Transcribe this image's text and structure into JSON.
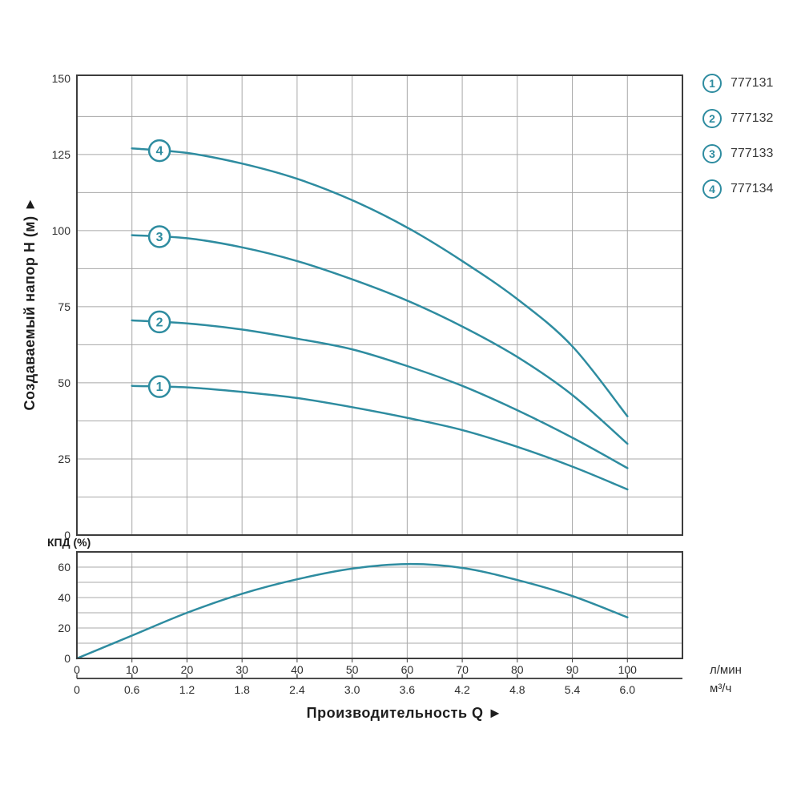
{
  "titles": {
    "y_main": "Создаваемый напор H (м)  ►",
    "x_bottom": "Производительность Q  ►",
    "eff": "КПД (%)",
    "unit_lmin": "л/мин",
    "unit_m3h": "м³/ч"
  },
  "colors": {
    "curve": "#2e8ca0",
    "grid": "#a8a8a8",
    "border": "#3d3d3d",
    "scalebar": "#4d4d4d",
    "tick_text": "#2e2e2e"
  },
  "legend": {
    "items": [
      {
        "number": "1",
        "code": "777131",
        "icon": "circled-1-icon"
      },
      {
        "number": "2",
        "code": "777132",
        "icon": "circled-2-icon"
      },
      {
        "number": "3",
        "code": "777133",
        "icon": "circled-3-icon"
      },
      {
        "number": "4",
        "code": "777134",
        "icon": "circled-4-icon"
      }
    ]
  },
  "chart_data": [
    {
      "type": "line",
      "title": "",
      "xlabel": "Производительность Q",
      "ylabel": "Создаваемый напор H (м)",
      "xlim": [
        0,
        110
      ],
      "ylim": [
        0,
        151
      ],
      "grid": true,
      "grid_x_step": 10,
      "grid_y_step": 12.5,
      "y_ticks": [
        0,
        25,
        50,
        75,
        100,
        125,
        150
      ],
      "x_ticks_lmin": [
        0,
        10,
        20,
        30,
        40,
        50,
        60,
        70,
        80,
        90,
        100
      ],
      "x_ticks_m3h": [
        "0",
        "0.6",
        "1.2",
        "1.8",
        "2.4",
        "3.0",
        "3.6",
        "4.2",
        "4.8",
        "5.4",
        "6.0"
      ],
      "x_units": [
        "л/мин",
        "м³/ч"
      ],
      "marker_q": 15,
      "series": [
        {
          "name": "777131",
          "marker": "1",
          "x": [
            10,
            20,
            30,
            40,
            50,
            60,
            70,
            80,
            90,
            100
          ],
          "y": [
            49,
            48.5,
            47,
            45,
            42,
            38.5,
            34.5,
            29,
            22.5,
            15
          ]
        },
        {
          "name": "777132",
          "marker": "2",
          "x": [
            10,
            20,
            30,
            40,
            50,
            60,
            70,
            80,
            90,
            100
          ],
          "y": [
            70.5,
            69.5,
            67.5,
            64.5,
            61,
            55.5,
            49,
            41,
            32,
            22
          ]
        },
        {
          "name": "777133",
          "marker": "3",
          "x": [
            10,
            20,
            30,
            40,
            50,
            60,
            70,
            80,
            90,
            100
          ],
          "y": [
            98.5,
            97.5,
            94.5,
            90,
            84,
            77,
            68.5,
            58.5,
            46,
            30
          ]
        },
        {
          "name": "777134",
          "marker": "4",
          "x": [
            10,
            20,
            30,
            40,
            50,
            60,
            70,
            80,
            90,
            100
          ],
          "y": [
            127,
            125.5,
            122,
            117,
            110,
            101,
            90,
            77.5,
            62,
            39
          ]
        }
      ]
    },
    {
      "type": "line",
      "title": "КПД (%)",
      "xlabel": "Производительность Q",
      "ylabel": "КПД (%)",
      "xlim": [
        0,
        110
      ],
      "ylim": [
        0,
        70
      ],
      "grid": true,
      "grid_x_step": 10,
      "grid_y_step": 10,
      "y_ticks": [
        0,
        20,
        40,
        60
      ],
      "series": [
        {
          "name": "КПД",
          "x": [
            0,
            10,
            20,
            30,
            40,
            50,
            60,
            70,
            80,
            90,
            100
          ],
          "y": [
            0,
            15,
            30,
            42.5,
            52,
            59,
            62,
            59.5,
            51.5,
            41,
            27
          ]
        }
      ]
    }
  ]
}
